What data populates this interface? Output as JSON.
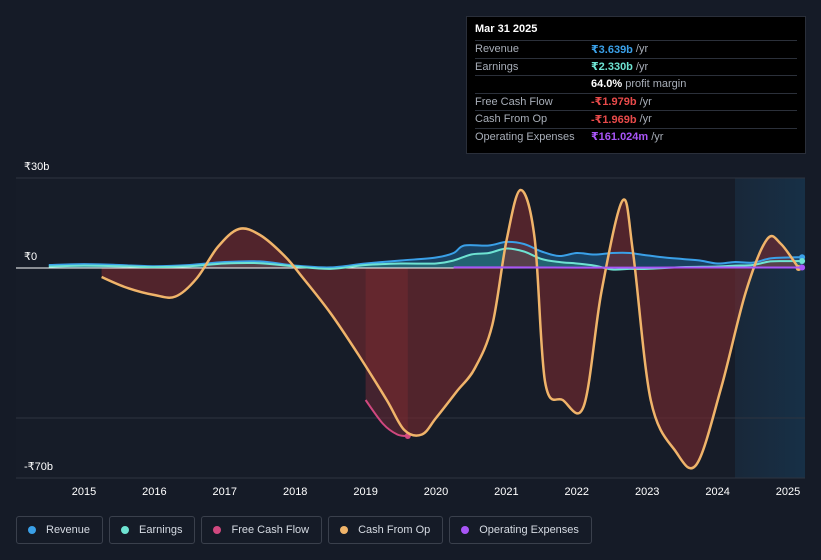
{
  "tooltip": {
    "date": "Mar 31 2025",
    "rows": [
      {
        "label": "Revenue",
        "value": "₹3.639b",
        "unit": "/yr",
        "color": "#3aa0e8"
      },
      {
        "label": "Earnings",
        "value": "₹2.330b",
        "unit": "/yr",
        "color": "#6ee3d2"
      },
      {
        "label": "",
        "value": "64.0%",
        "unit": "profit margin",
        "color": "#ffffff"
      },
      {
        "label": "Free Cash Flow",
        "value": "-₹1.979b",
        "unit": "/yr",
        "color": "#e84a4a"
      },
      {
        "label": "Cash From Op",
        "value": "-₹1.969b",
        "unit": "/yr",
        "color": "#e84a4a"
      },
      {
        "label": "Operating Expenses",
        "value": "₹161.024m",
        "unit": "/yr",
        "color": "#a855f7"
      }
    ]
  },
  "axis": {
    "y_top_label": "₹30b",
    "y_zero_label": "₹0",
    "y_bottom_label": "-₹70b"
  },
  "legend": [
    {
      "label": "Revenue",
      "color": "#3aa0e8"
    },
    {
      "label": "Earnings",
      "color": "#6ee3d2"
    },
    {
      "label": "Free Cash Flow",
      "color": "#d0487f"
    },
    {
      "label": "Cash From Op",
      "color": "#f0b46a"
    },
    {
      "label": "Operating Expenses",
      "color": "#a855f7"
    }
  ],
  "chart_data": {
    "type": "area",
    "ylim": [
      -70,
      30
    ],
    "y_unit": "₹b",
    "x_ticks": [
      "2015",
      "2016",
      "2017",
      "2018",
      "2019",
      "2020",
      "2021",
      "2022",
      "2023",
      "2024",
      "2025"
    ],
    "forecast_start": 2024.25,
    "series": [
      {
        "name": "Revenue",
        "color": "#3aa0e8",
        "points": [
          [
            2014.5,
            1
          ],
          [
            2015,
            1.3
          ],
          [
            2015.5,
            1
          ],
          [
            2016,
            0.6
          ],
          [
            2016.5,
            1
          ],
          [
            2017,
            2
          ],
          [
            2017.5,
            2.2
          ],
          [
            2018,
            0.8
          ],
          [
            2018.5,
            0.2
          ],
          [
            2019,
            1.5
          ],
          [
            2019.5,
            2.5
          ],
          [
            2020,
            3.5
          ],
          [
            2020.25,
            5
          ],
          [
            2020.4,
            7.5
          ],
          [
            2020.75,
            7.5
          ],
          [
            2021,
            8.7
          ],
          [
            2021.25,
            8
          ],
          [
            2021.5,
            5.5
          ],
          [
            2021.75,
            4
          ],
          [
            2022,
            5
          ],
          [
            2022.25,
            4.5
          ],
          [
            2022.5,
            5
          ],
          [
            2022.75,
            5
          ],
          [
            2023,
            4.2
          ],
          [
            2023.25,
            3.5
          ],
          [
            2023.5,
            3
          ],
          [
            2023.75,
            2.5
          ],
          [
            2024,
            1.5
          ],
          [
            2024.25,
            2
          ],
          [
            2024.5,
            1.8
          ],
          [
            2024.75,
            3.2
          ],
          [
            2025,
            3.5
          ],
          [
            2025.2,
            3.6
          ]
        ]
      },
      {
        "name": "Earnings",
        "color": "#6ee3d2",
        "points": [
          [
            2014.5,
            0.5
          ],
          [
            2015,
            0.8
          ],
          [
            2015.5,
            0.6
          ],
          [
            2016,
            0.3
          ],
          [
            2016.5,
            0.6
          ],
          [
            2017,
            1.5
          ],
          [
            2017.5,
            1.6
          ],
          [
            2018,
            0.5
          ],
          [
            2018.5,
            -0.3
          ],
          [
            2019,
            1
          ],
          [
            2019.5,
            1.5
          ],
          [
            2020,
            1.5
          ],
          [
            2020.25,
            2.5
          ],
          [
            2020.5,
            4.5
          ],
          [
            2020.75,
            5
          ],
          [
            2021,
            6.5
          ],
          [
            2021.25,
            5.5
          ],
          [
            2021.5,
            3
          ],
          [
            2021.75,
            2
          ],
          [
            2022,
            1.5
          ],
          [
            2022.25,
            0.8
          ],
          [
            2022.5,
            -0.5
          ],
          [
            2022.75,
            -0.3
          ],
          [
            2023,
            -0.3
          ],
          [
            2023.5,
            0.3
          ],
          [
            2024,
            0.5
          ],
          [
            2024.25,
            0.8
          ],
          [
            2024.5,
            1
          ],
          [
            2024.75,
            2.2
          ],
          [
            2025,
            2.3
          ],
          [
            2025.2,
            2.33
          ]
        ]
      },
      {
        "name": "Free Cash Flow",
        "color": "#d0487f",
        "points": [
          [
            2019,
            -44
          ],
          [
            2019.25,
            -52
          ],
          [
            2019.45,
            -55.5
          ],
          [
            2019.6,
            -56
          ]
        ]
      },
      {
        "name": "Cash From Op",
        "color": "#f0b46a",
        "points": [
          [
            2015.25,
            -3
          ],
          [
            2015.6,
            -6.5
          ],
          [
            2016,
            -9
          ],
          [
            2016.3,
            -9.5
          ],
          [
            2016.6,
            -3.5
          ],
          [
            2016.9,
            7
          ],
          [
            2017.2,
            13
          ],
          [
            2017.5,
            11
          ],
          [
            2017.85,
            4
          ],
          [
            2018.1,
            -3
          ],
          [
            2018.5,
            -15
          ],
          [
            2018.9,
            -29
          ],
          [
            2019.3,
            -44
          ],
          [
            2019.55,
            -54
          ],
          [
            2019.8,
            -55.5
          ],
          [
            2020,
            -50
          ],
          [
            2020.3,
            -41
          ],
          [
            2020.55,
            -33.5
          ],
          [
            2020.8,
            -19
          ],
          [
            2021,
            9
          ],
          [
            2021.2,
            26
          ],
          [
            2021.4,
            10
          ],
          [
            2021.55,
            -38
          ],
          [
            2021.8,
            -44
          ],
          [
            2022.1,
            -46
          ],
          [
            2022.35,
            -8
          ],
          [
            2022.65,
            22.5
          ],
          [
            2022.8,
            5
          ],
          [
            2023.05,
            -44
          ],
          [
            2023.4,
            -61
          ],
          [
            2023.7,
            -65.5
          ],
          [
            2024.05,
            -40
          ],
          [
            2024.4,
            -8
          ],
          [
            2024.7,
            9.5
          ],
          [
            2024.9,
            8
          ],
          [
            2025.15,
            0
          ]
        ]
      },
      {
        "name": "Operating Expenses",
        "color": "#a855f7",
        "points": [
          [
            2020.25,
            0.2
          ],
          [
            2021,
            0.2
          ],
          [
            2022,
            0.15
          ],
          [
            2023,
            0.15
          ],
          [
            2024,
            0.16
          ],
          [
            2025,
            0.16
          ],
          [
            2025.2,
            0.16
          ]
        ]
      }
    ]
  }
}
